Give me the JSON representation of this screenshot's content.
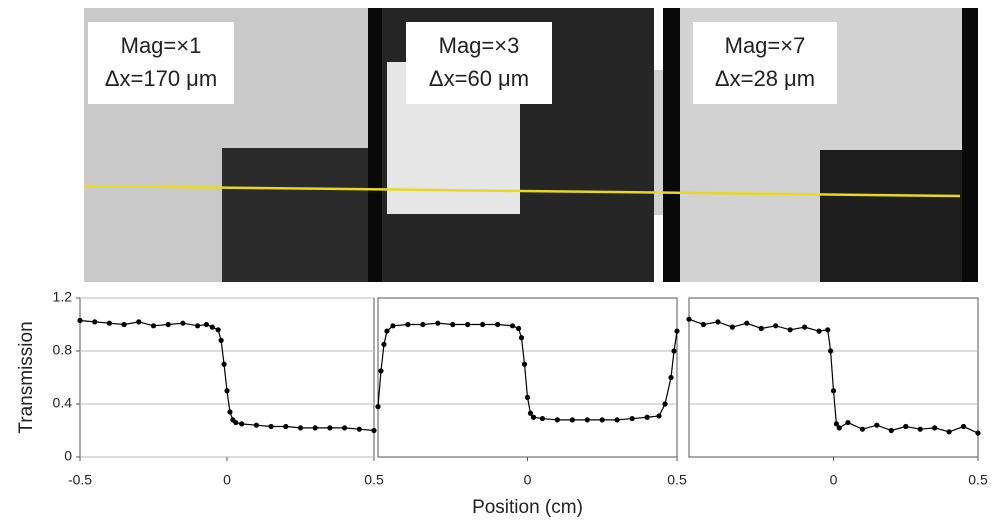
{
  "images": [
    {
      "labels": [
        "Mag=×1",
        "Δx=170 μm"
      ]
    },
    {
      "labels": [
        "Mag=×3",
        "Δx=60 μm"
      ]
    },
    {
      "labels": [
        "Mag=×7",
        "Δx=28 μm"
      ]
    }
  ],
  "chart_data": [
    {
      "type": "scatter",
      "y_label": "Transmission",
      "xlim": [
        -0.5,
        0.5
      ],
      "ylim": [
        0,
        1.2
      ],
      "xticks": [
        -0.5,
        0,
        0.5
      ],
      "yticks": [
        0,
        0.4,
        0.8,
        1.2
      ],
      "connect": true,
      "x": [
        -0.5,
        -0.45,
        -0.4,
        -0.35,
        -0.3,
        -0.25,
        -0.2,
        -0.15,
        -0.1,
        -0.07,
        -0.05,
        -0.03,
        -0.02,
        -0.01,
        0,
        0.01,
        0.02,
        0.03,
        0.05,
        0.1,
        0.15,
        0.2,
        0.25,
        0.3,
        0.35,
        0.4,
        0.45,
        0.5
      ],
      "series": [
        {
          "color": "#000000",
          "values": [
            1.03,
            1.02,
            1.01,
            1.0,
            1.02,
            0.99,
            1.0,
            1.01,
            0.99,
            1.0,
            0.98,
            0.96,
            0.88,
            0.7,
            0.5,
            0.34,
            0.28,
            0.26,
            0.25,
            0.24,
            0.23,
            0.23,
            0.22,
            0.22,
            0.22,
            0.22,
            0.21,
            0.2
          ]
        }
      ]
    },
    {
      "type": "scatter",
      "x_label": "Position (cm)",
      "xlim": [
        -0.5,
        0.5
      ],
      "ylim": [
        0,
        1.2
      ],
      "xticks": [
        0,
        0.5
      ],
      "gridlines": [
        0.4,
        0.8
      ],
      "connect": true,
      "x": [
        -0.5,
        -0.49,
        -0.48,
        -0.47,
        -0.45,
        -0.4,
        -0.35,
        -0.3,
        -0.25,
        -0.2,
        -0.15,
        -0.1,
        -0.05,
        -0.03,
        -0.02,
        -0.01,
        0,
        0.01,
        0.02,
        0.05,
        0.1,
        0.15,
        0.2,
        0.25,
        0.3,
        0.35,
        0.4,
        0.44,
        0.46,
        0.48,
        0.49,
        0.5
      ],
      "series": [
        {
          "color": "#000000",
          "values": [
            0.38,
            0.65,
            0.85,
            0.95,
            0.99,
            1.0,
            1.0,
            1.01,
            1.0,
            1.0,
            1.0,
            1.0,
            0.99,
            0.97,
            0.9,
            0.7,
            0.45,
            0.33,
            0.3,
            0.29,
            0.28,
            0.28,
            0.28,
            0.28,
            0.28,
            0.29,
            0.3,
            0.31,
            0.4,
            0.6,
            0.8,
            0.95
          ]
        }
      ]
    },
    {
      "type": "scatter",
      "xlim": [
        -0.5,
        0.5
      ],
      "ylim": [
        0,
        1.2
      ],
      "xticks": [
        0,
        0.5
      ],
      "gridlines": [
        0.4,
        0.8
      ],
      "connect": true,
      "x": [
        -0.5,
        -0.45,
        -0.4,
        -0.35,
        -0.3,
        -0.25,
        -0.2,
        -0.15,
        -0.1,
        -0.05,
        -0.02,
        -0.01,
        0,
        0.01,
        0.02,
        0.05,
        0.1,
        0.15,
        0.2,
        0.25,
        0.3,
        0.35,
        0.4,
        0.45,
        0.5
      ],
      "series": [
        {
          "color": "#000000",
          "values": [
            1.04,
            1.0,
            1.02,
            0.98,
            1.01,
            0.97,
            0.99,
            0.96,
            0.98,
            0.95,
            0.96,
            0.8,
            0.5,
            0.25,
            0.22,
            0.26,
            0.21,
            0.24,
            0.2,
            0.23,
            0.21,
            0.22,
            0.19,
            0.23,
            0.18
          ]
        }
      ]
    }
  ]
}
